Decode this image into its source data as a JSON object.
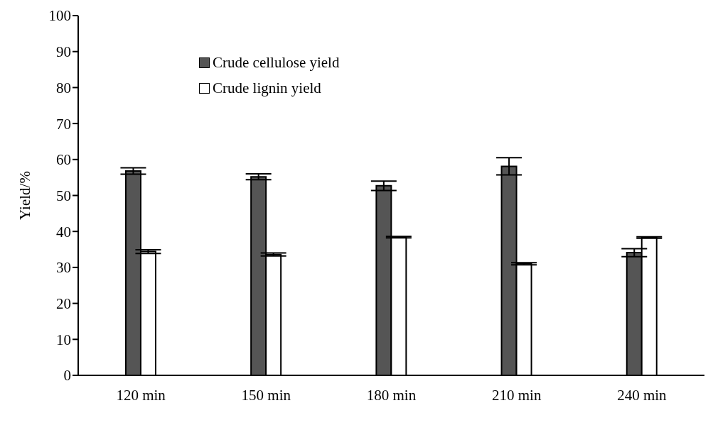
{
  "chart_data": {
    "type": "bar",
    "ylabel": "Yield/%",
    "categories": [
      "120 min",
      "150 min",
      "180 min",
      "210 min",
      "240 min"
    ],
    "series": [
      {
        "name": "Crude cellulose yield",
        "color": "#555555",
        "values": [
          56.8,
          55.2,
          52.7,
          58.1,
          34.1
        ],
        "errors": [
          0.9,
          0.8,
          1.3,
          2.4,
          1.1
        ]
      },
      {
        "name": "Crude lignin yield",
        "color": "#ffffff",
        "values": [
          34.4,
          33.6,
          38.4,
          31.0,
          38.3
        ],
        "errors": [
          0.5,
          0.4,
          0.2,
          0.3,
          0.2
        ]
      }
    ],
    "ylim": [
      0,
      100
    ],
    "yticks": [
      0,
      10,
      20,
      30,
      40,
      50,
      60,
      70,
      80,
      90,
      100
    ],
    "grid": false,
    "legend": "top left"
  }
}
